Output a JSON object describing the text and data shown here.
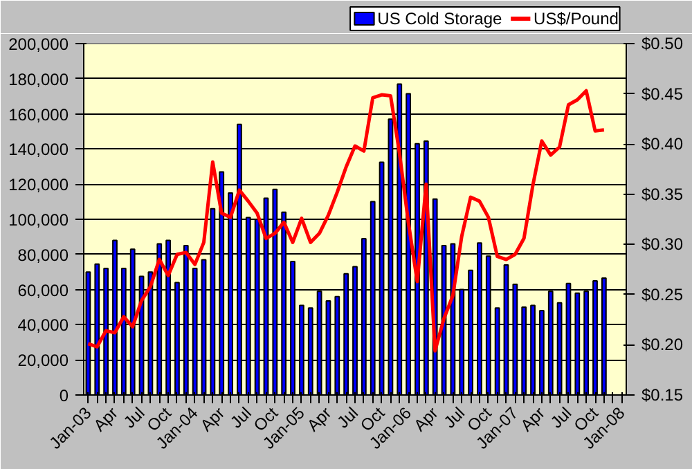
{
  "chart_data": {
    "type": "bar",
    "categories": [
      "Jan-03",
      null,
      null,
      "Apr",
      null,
      null,
      "Jul",
      null,
      null,
      "Oct",
      null,
      null,
      "Jan-04",
      null,
      null,
      "Apr",
      null,
      null,
      "Jul",
      null,
      null,
      "Oct",
      null,
      null,
      "Jan-05",
      null,
      null,
      "Apr",
      null,
      null,
      "Jul",
      null,
      null,
      "Oct",
      null,
      null,
      "Jan-06",
      null,
      null,
      "Apr",
      null,
      null,
      "Jul",
      null,
      null,
      "Oct",
      null,
      null,
      "Jan-07",
      null,
      null,
      "Apr",
      null,
      null,
      "Jul",
      null,
      null,
      "Oct",
      null,
      null,
      "Jan-08"
    ],
    "series": [
      {
        "name": "US Cold Storage",
        "color": "#0000ff",
        "values": [
          70000,
          74500,
          72000,
          88000,
          72000,
          83000,
          67500,
          70000,
          86000,
          88000,
          64000,
          85000,
          72000,
          77000,
          106000,
          127000,
          115000,
          154000,
          101000,
          100000,
          112000,
          117000,
          104000,
          76000,
          51000,
          49500,
          59000,
          53500,
          56000,
          69000,
          73000,
          89000,
          110000,
          132500,
          157000,
          177000,
          171500,
          143000,
          144500,
          111500,
          85000,
          86000,
          60000,
          71000,
          86500,
          79000,
          49500,
          74000,
          63000,
          50000,
          51000,
          48000,
          59000,
          52500,
          63500,
          58000,
          59000,
          65000,
          66500,
          null,
          null
        ]
      },
      {
        "name": "US$/Pound",
        "type": "line",
        "axis": "y2",
        "color": "#ff0000",
        "values": [
          0.201,
          0.198,
          0.214,
          0.212,
          0.228,
          0.218,
          0.244,
          0.258,
          0.285,
          0.269,
          0.29,
          0.292,
          0.28,
          0.302,
          0.382,
          0.331,
          0.327,
          0.354,
          0.343,
          0.331,
          0.306,
          0.311,
          0.322,
          0.302,
          0.326,
          0.302,
          0.311,
          0.329,
          0.352,
          0.377,
          0.398,
          0.393,
          0.446,
          0.449,
          0.448,
          0.391,
          0.322,
          0.263,
          0.36,
          0.194,
          0.226,
          0.249,
          0.308,
          0.347,
          0.343,
          0.327,
          0.288,
          0.285,
          0.29,
          0.306,
          0.359,
          0.403,
          0.389,
          0.397,
          0.439,
          0.444,
          0.453,
          0.413,
          0.414,
          null,
          null
        ]
      }
    ],
    "ylim": [
      0,
      200000
    ],
    "yticks": [
      {
        "value": 0,
        "label": "0"
      },
      {
        "value": 20000,
        "label": "20,000"
      },
      {
        "value": 40000,
        "label": "40,000"
      },
      {
        "value": 60000,
        "label": "60,000"
      },
      {
        "value": 80000,
        "label": "80,000"
      },
      {
        "value": 100000,
        "label": "100,000"
      },
      {
        "value": 120000,
        "label": "120,000"
      },
      {
        "value": 140000,
        "label": "140,000"
      },
      {
        "value": 160000,
        "label": "160,000"
      },
      {
        "value": 180000,
        "label": "180,000"
      },
      {
        "value": 200000,
        "label": "200,000"
      }
    ],
    "y2lim": [
      0.15,
      0.5
    ],
    "y2ticks": [
      {
        "value": 0.15,
        "label": "$0.15"
      },
      {
        "value": 0.2,
        "label": "$0.20"
      },
      {
        "value": 0.25,
        "label": "$0.25"
      },
      {
        "value": 0.3,
        "label": "$0.30"
      },
      {
        "value": 0.35,
        "label": "$0.35"
      },
      {
        "value": 0.4,
        "label": "$0.40"
      },
      {
        "value": 0.45,
        "label": "$0.45"
      },
      {
        "value": 0.5,
        "label": "$0.50"
      }
    ],
    "grid": "y",
    "legend": "top right"
  }
}
